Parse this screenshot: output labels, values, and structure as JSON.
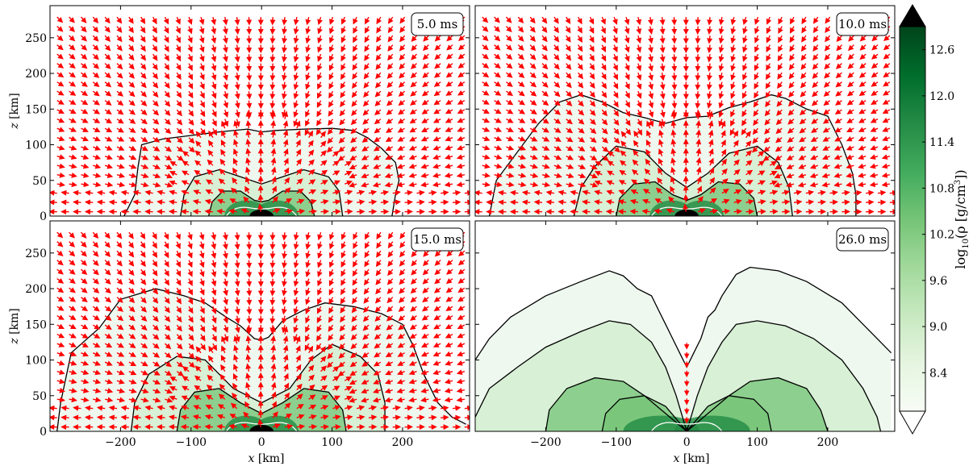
{
  "chart_data": {
    "type": "heatmap",
    "colorbar": {
      "label": "log10(ρ [g/cm^3])",
      "label_main": "log",
      "label_sub": "10",
      "label_rest": "(ρ [g/cm",
      "label_sup": "3",
      "label_end": "])",
      "ticks": [
        "12.6",
        "12.0",
        "11.4",
        "10.8",
        "10.2",
        "9.6",
        "9.0",
        "8.4"
      ],
      "tick_values": [
        12.6,
        12.0,
        11.4,
        10.8,
        10.2,
        9.6,
        9.0,
        8.4
      ],
      "range": [
        7.9,
        12.9
      ],
      "cmap": [
        "#f7fcf5",
        "#e5f5e0",
        "#c7e9c0",
        "#a1d99b",
        "#74c476",
        "#41ab5d",
        "#238b45",
        "#006d2c",
        "#00441b"
      ],
      "extend": "both"
    },
    "xlim": [
      -300,
      295
    ],
    "ylim": [
      0,
      295
    ],
    "xticks": [
      -200,
      -100,
      0,
      100,
      200
    ],
    "yticks": [
      0,
      50,
      100,
      150,
      200,
      250
    ],
    "xlabel_var": "x",
    "xlabel_unit": "[km]",
    "ylabel_var": "z",
    "ylabel_unit": "[km]",
    "velocity_arrow_color": "#ff0000",
    "contour_color": "#000000",
    "inner_contour_color": "#ffffff",
    "panels": [
      {
        "time": "5.0 ms",
        "outer_contour": [
          [
            -195,
            0
          ],
          [
            -180,
            30
          ],
          [
            -175,
            70
          ],
          [
            -170,
            100
          ],
          [
            -140,
            108
          ],
          [
            -100,
            113
          ],
          [
            -60,
            118
          ],
          [
            -20,
            122
          ],
          [
            0,
            118
          ],
          [
            20,
            120
          ],
          [
            60,
            122
          ],
          [
            100,
            123
          ],
          [
            130,
            120
          ],
          [
            150,
            110
          ],
          [
            170,
            95
          ],
          [
            190,
            75
          ],
          [
            195,
            50
          ],
          [
            190,
            30
          ],
          [
            185,
            0
          ]
        ],
        "inner_contours": [
          [
            [
              -115,
              0
            ],
            [
              -110,
              30
            ],
            [
              -95,
              55
            ],
            [
              -60,
              65
            ],
            [
              -30,
              55
            ],
            [
              0,
              45
            ],
            [
              30,
              55
            ],
            [
              60,
              65
            ],
            [
              95,
              55
            ],
            [
              110,
              35
            ],
            [
              115,
              0
            ]
          ],
          [
            [
              -75,
              0
            ],
            [
              -70,
              20
            ],
            [
              -55,
              35
            ],
            [
              -30,
              35
            ],
            [
              -10,
              22
            ],
            [
              0,
              20
            ],
            [
              10,
              22
            ],
            [
              30,
              35
            ],
            [
              55,
              35
            ],
            [
              70,
              20
            ],
            [
              75,
              0
            ]
          ]
        ],
        "arrows": true
      },
      {
        "time": "10.0 ms",
        "outer_contour": [
          [
            -280,
            0
          ],
          [
            -270,
            50
          ],
          [
            -240,
            90
          ],
          [
            -210,
            130
          ],
          [
            -180,
            160
          ],
          [
            -150,
            170
          ],
          [
            -120,
            160
          ],
          [
            -90,
            145
          ],
          [
            -60,
            138
          ],
          [
            -30,
            130
          ],
          [
            0,
            138
          ],
          [
            30,
            140
          ],
          [
            60,
            152
          ],
          [
            90,
            160
          ],
          [
            120,
            170
          ],
          [
            140,
            165
          ],
          [
            170,
            150
          ],
          [
            200,
            140
          ],
          [
            220,
            100
          ],
          [
            235,
            60
          ],
          [
            240,
            30
          ],
          [
            240,
            0
          ]
        ],
        "inner_contours": [
          [
            [
              -160,
              0
            ],
            [
              -150,
              40
            ],
            [
              -130,
              70
            ],
            [
              -100,
              98
            ],
            [
              -60,
              90
            ],
            [
              -30,
              60
            ],
            [
              0,
              40
            ],
            [
              30,
              60
            ],
            [
              60,
              88
            ],
            [
              100,
              98
            ],
            [
              130,
              75
            ],
            [
              145,
              40
            ],
            [
              150,
              0
            ]
          ],
          [
            [
              -100,
              0
            ],
            [
              -95,
              25
            ],
            [
              -75,
              45
            ],
            [
              -45,
              48
            ],
            [
              -20,
              30
            ],
            [
              0,
              22
            ],
            [
              20,
              30
            ],
            [
              45,
              48
            ],
            [
              75,
              45
            ],
            [
              95,
              25
            ],
            [
              100,
              0
            ]
          ]
        ],
        "arrows": true
      },
      {
        "time": "15.0 ms",
        "outer_contour": [
          [
            -290,
            0
          ],
          [
            -285,
            40
          ],
          [
            -270,
            110
          ],
          [
            -230,
            145
          ],
          [
            -200,
            185
          ],
          [
            -150,
            200
          ],
          [
            -110,
            190
          ],
          [
            -80,
            180
          ],
          [
            -50,
            160
          ],
          [
            -30,
            148
          ],
          [
            -10,
            130
          ],
          [
            0,
            128
          ],
          [
            10,
            132
          ],
          [
            30,
            155
          ],
          [
            60,
            170
          ],
          [
            90,
            180
          ],
          [
            130,
            175
          ],
          [
            170,
            165
          ],
          [
            200,
            150
          ],
          [
            215,
            120
          ],
          [
            230,
            80
          ],
          [
            250,
            40
          ],
          [
            270,
            20
          ],
          [
            290,
            10
          ]
        ],
        "inner_contours": [
          [
            [
              -185,
              0
            ],
            [
              -180,
              40
            ],
            [
              -160,
              80
            ],
            [
              -120,
              105
            ],
            [
              -80,
              100
            ],
            [
              -40,
              60
            ],
            [
              0,
              40
            ],
            [
              40,
              60
            ],
            [
              70,
              100
            ],
            [
              100,
              122
            ],
            [
              140,
              105
            ],
            [
              165,
              80
            ],
            [
              175,
              40
            ],
            [
              175,
              0
            ]
          ],
          [
            [
              -120,
              0
            ],
            [
              -115,
              30
            ],
            [
              -95,
              55
            ],
            [
              -60,
              60
            ],
            [
              -30,
              40
            ],
            [
              0,
              25
            ],
            [
              30,
              40
            ],
            [
              60,
              60
            ],
            [
              95,
              55
            ],
            [
              115,
              30
            ],
            [
              120,
              0
            ]
          ]
        ],
        "arrows": true
      },
      {
        "time": "26.0 ms",
        "outer_contour": [
          [
            -300,
            100
          ],
          [
            -280,
            130
          ],
          [
            -250,
            160
          ],
          [
            -200,
            190
          ],
          [
            -150,
            210
          ],
          [
            -110,
            225
          ],
          [
            -90,
            218
          ],
          [
            -70,
            200
          ],
          [
            -50,
            190
          ],
          [
            -40,
            170
          ],
          [
            -30,
            150
          ],
          [
            -20,
            130
          ],
          [
            -10,
            110
          ],
          [
            0,
            90
          ],
          [
            10,
            110
          ],
          [
            20,
            130
          ],
          [
            30,
            160
          ],
          [
            40,
            170
          ],
          [
            50,
            190
          ],
          [
            60,
            205
          ],
          [
            70,
            220
          ],
          [
            90,
            230
          ],
          [
            130,
            225
          ],
          [
            170,
            210
          ],
          [
            220,
            180
          ],
          [
            260,
            140
          ],
          [
            290,
            110
          ]
        ],
        "inner_contours": [
          [
            [
              -300,
              20
            ],
            [
              -280,
              60
            ],
            [
              -240,
              90
            ],
            [
              -200,
              118
            ],
            [
              -150,
              140
            ],
            [
              -110,
              155
            ],
            [
              -80,
              150
            ],
            [
              -50,
              125
            ],
            [
              -30,
              90
            ],
            [
              -15,
              50
            ],
            [
              0,
              0
            ],
            [
              15,
              50
            ],
            [
              30,
              90
            ],
            [
              50,
              125
            ],
            [
              70,
              150
            ],
            [
              100,
              155
            ],
            [
              140,
              148
            ],
            [
              180,
              130
            ],
            [
              220,
              100
            ],
            [
              250,
              60
            ],
            [
              270,
              20
            ],
            [
              275,
              0
            ]
          ],
          [
            [
              -200,
              0
            ],
            [
              -195,
              30
            ],
            [
              -170,
              60
            ],
            [
              -130,
              75
            ],
            [
              -90,
              70
            ],
            [
              -60,
              50
            ],
            [
              -30,
              25
            ],
            [
              0,
              0
            ],
            [
              30,
              25
            ],
            [
              60,
              50
            ],
            [
              90,
              70
            ],
            [
              130,
              75
            ],
            [
              170,
              60
            ],
            [
              190,
              30
            ],
            [
              200,
              0
            ]
          ],
          [
            [
              -120,
              0
            ],
            [
              -115,
              25
            ],
            [
              -95,
              45
            ],
            [
              -60,
              50
            ],
            [
              -30,
              35
            ],
            [
              0,
              0
            ],
            [
              30,
              35
            ],
            [
              60,
              50
            ],
            [
              95,
              45
            ],
            [
              115,
              25
            ],
            [
              120,
              0
            ]
          ]
        ],
        "arrows": false
      }
    ]
  }
}
